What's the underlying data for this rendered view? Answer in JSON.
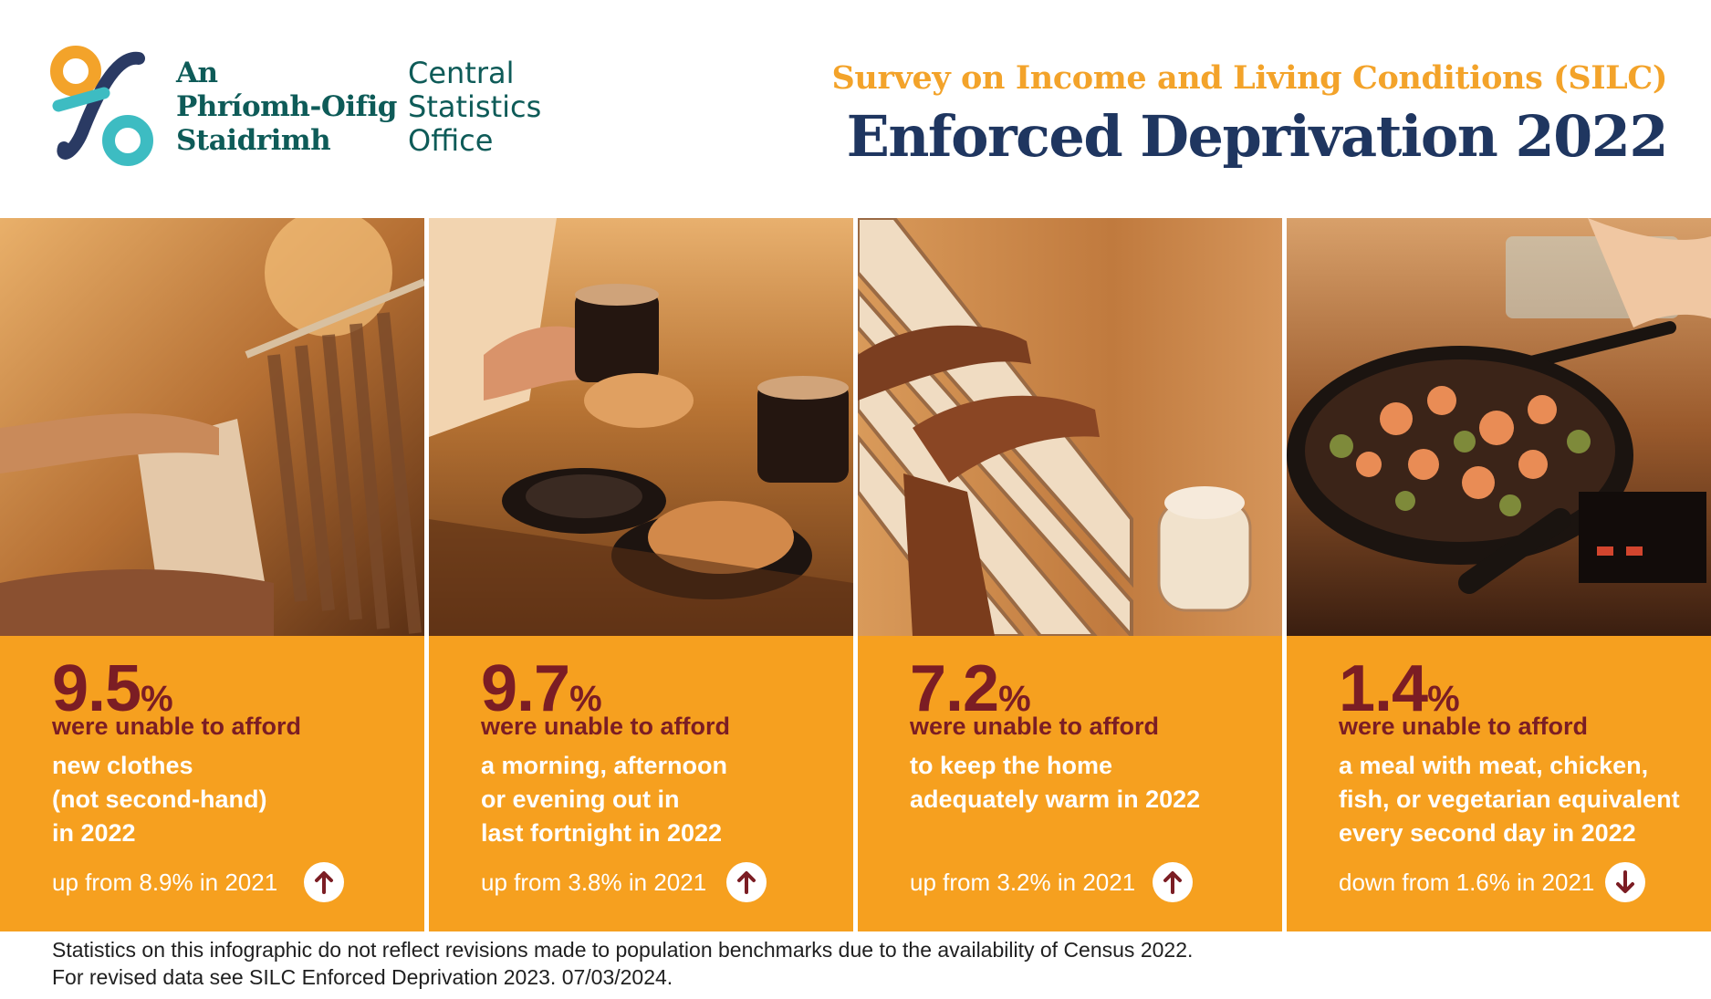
{
  "header": {
    "logo_irish": [
      "An",
      "Phríomh-Oifig",
      "Staidrimh"
    ],
    "logo_english": [
      "Central",
      "Statistics",
      "Office"
    ],
    "subtitle": "Survey on Income and Living Conditions (SILC)",
    "title": "Enforced Deprivation 2022"
  },
  "colors": {
    "accent_orange": "#f6a01f",
    "stat_red": "#7b1d24",
    "title_navy": "#1f3660",
    "logo_teal": "#0e5b58"
  },
  "panels": [
    {
      "image": "clothes-rack-photo",
      "value": "9.5",
      "unit": "%",
      "lead": "were unable to afford",
      "item_lines": [
        "new clothes",
        "(not second-hand)",
        "in 2022"
      ],
      "change": "up from 8.9% in 2021",
      "trend_icon": "arrow-up-icon"
    },
    {
      "image": "coffee-croissant-photo",
      "value": "9.7",
      "unit": "%",
      "lead": "were unable to afford",
      "item_lines": [
        "a morning, afternoon",
        "or evening out in",
        "last fortnight in 2022"
      ],
      "change": "up from 3.8% in 2021",
      "trend_icon": "arrow-up-icon"
    },
    {
      "image": "hands-on-radiator-photo",
      "value": "7.2",
      "unit": "%",
      "lead": "were unable to afford",
      "item_lines": [
        "to keep the home",
        "adequately warm in 2022"
      ],
      "change": "up from 3.2% in 2021",
      "trend_icon": "arrow-up-icon"
    },
    {
      "image": "frying-pan-meal-photo",
      "value": "1.4",
      "unit": "%",
      "lead": "were unable to afford",
      "item_lines": [
        "a meal with meat, chicken,",
        "fish, or vegetarian equivalent",
        "every second day in 2022"
      ],
      "change": "down from 1.6% in 2021",
      "trend_icon": "arrow-down-icon"
    }
  ],
  "footer": {
    "line1": "Statistics on this infographic do not reflect revisions made to population benchmarks due to the availability of Census 2022.",
    "line2": "For revised data see SILC Enforced Deprivation 2023. 07/03/2024."
  }
}
